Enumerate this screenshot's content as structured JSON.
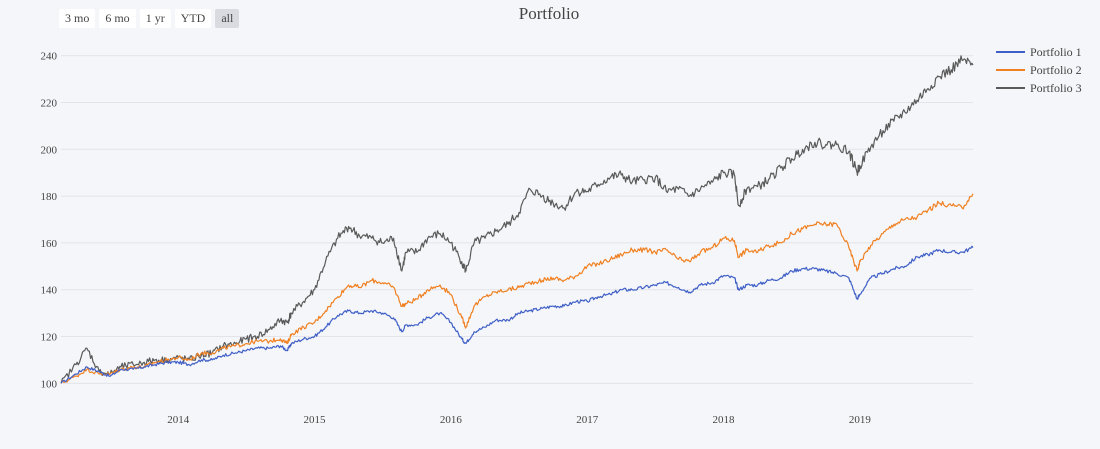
{
  "range_selector": {
    "buttons": [
      {
        "label": "3 mo",
        "active": false
      },
      {
        "label": "6 mo",
        "active": false
      },
      {
        "label": "1 yr",
        "active": false
      },
      {
        "label": "YTD",
        "active": false
      },
      {
        "label": "all",
        "active": true
      }
    ]
  },
  "chart_data": {
    "type": "line",
    "title": "Portfolio",
    "xlabel": "",
    "ylabel": "",
    "xlim": [
      2013.14,
      2019.83
    ],
    "ylim": [
      98,
      245
    ],
    "x_ticks": [
      2014,
      2015,
      2016,
      2017,
      2018,
      2019
    ],
    "x_tick_labels": [
      "2014",
      "2015",
      "2016",
      "2017",
      "2018",
      "2019"
    ],
    "y_ticks": [
      100,
      120,
      140,
      160,
      180,
      200,
      220,
      240
    ],
    "y_tick_labels": [
      "100",
      "120",
      "140",
      "160",
      "180",
      "200",
      "220",
      "240"
    ],
    "grid": true,
    "legend_position": "top-right",
    "x": [
      2013.14,
      2013.25,
      2013.33,
      2013.42,
      2013.5,
      2013.58,
      2013.67,
      2013.75,
      2013.83,
      2013.92,
      2014.0,
      2014.08,
      2014.17,
      2014.25,
      2014.33,
      2014.42,
      2014.5,
      2014.58,
      2014.67,
      2014.75,
      2014.8,
      2014.83,
      2014.92,
      2015.0,
      2015.08,
      2015.17,
      2015.25,
      2015.33,
      2015.42,
      2015.5,
      2015.58,
      2015.64,
      2015.67,
      2015.75,
      2015.83,
      2015.92,
      2016.0,
      2016.08,
      2016.11,
      2016.17,
      2016.25,
      2016.33,
      2016.42,
      2016.5,
      2016.58,
      2016.67,
      2016.75,
      2016.83,
      2016.92,
      2017.0,
      2017.08,
      2017.17,
      2017.25,
      2017.33,
      2017.42,
      2017.5,
      2017.58,
      2017.67,
      2017.75,
      2017.83,
      2017.92,
      2018.0,
      2018.08,
      2018.11,
      2018.17,
      2018.25,
      2018.33,
      2018.42,
      2018.5,
      2018.58,
      2018.67,
      2018.75,
      2018.83,
      2018.92,
      2018.98,
      2019.0,
      2019.08,
      2019.17,
      2019.25,
      2019.33,
      2019.42,
      2019.5,
      2019.58,
      2019.67,
      2019.75,
      2019.83
    ],
    "series": [
      {
        "name": "Portfolio 1",
        "color": "#3f5fc7",
        "values": [
          100,
          104,
          107,
          105,
          103,
          106,
          106,
          107,
          108,
          109,
          109,
          108,
          110,
          110,
          112,
          113,
          114,
          115,
          115,
          116,
          114,
          117,
          119,
          120,
          124,
          129,
          131,
          130,
          131,
          130,
          128,
          122,
          125,
          125,
          128,
          130,
          126,
          119,
          117,
          122,
          124,
          127,
          127,
          130,
          131,
          132,
          133,
          133,
          135,
          135,
          137,
          138,
          140,
          140,
          141,
          142,
          143,
          141,
          139,
          142,
          143,
          146,
          145,
          140,
          142,
          142,
          144,
          145,
          148,
          149,
          149,
          148,
          147,
          145,
          136,
          138,
          145,
          147,
          149,
          150,
          154,
          155,
          157,
          156,
          156,
          158
        ]
      },
      {
        "name": "Portfolio 2",
        "color": "#f08021",
        "values": [
          100,
          103,
          106,
          104,
          104,
          106,
          107,
          107,
          109,
          110,
          111,
          110,
          113,
          113,
          115,
          116,
          117,
          118,
          118,
          119,
          117,
          121,
          124,
          126,
          131,
          137,
          142,
          141,
          144,
          143,
          141,
          133,
          134,
          136,
          140,
          142,
          138,
          128,
          124,
          133,
          137,
          139,
          140,
          141,
          143,
          144,
          145,
          144,
          146,
          150,
          151,
          153,
          155,
          157,
          157,
          156,
          157,
          153,
          152,
          156,
          158,
          162,
          161,
          154,
          157,
          156,
          159,
          160,
          164,
          166,
          168,
          168,
          168,
          158,
          148,
          152,
          159,
          164,
          168,
          170,
          171,
          174,
          177,
          176,
          175,
          181
        ]
      },
      {
        "name": "Portfolio 3",
        "color": "#5a5a5a",
        "values": [
          100,
          108,
          115,
          105,
          104,
          107,
          108,
          109,
          110,
          110,
          111,
          110,
          112,
          113,
          116,
          117,
          119,
          120,
          123,
          127,
          126,
          130,
          135,
          140,
          152,
          162,
          167,
          163,
          162,
          160,
          162,
          148,
          156,
          156,
          162,
          164,
          160,
          152,
          148,
          160,
          162,
          165,
          168,
          173,
          183,
          180,
          177,
          175,
          182,
          182,
          185,
          188,
          189,
          186,
          187,
          188,
          182,
          183,
          180,
          183,
          186,
          190,
          189,
          176,
          183,
          184,
          187,
          192,
          196,
          200,
          203,
          202,
          202,
          199,
          190,
          193,
          201,
          208,
          212,
          216,
          221,
          226,
          231,
          234,
          238,
          236
        ]
      }
    ]
  }
}
